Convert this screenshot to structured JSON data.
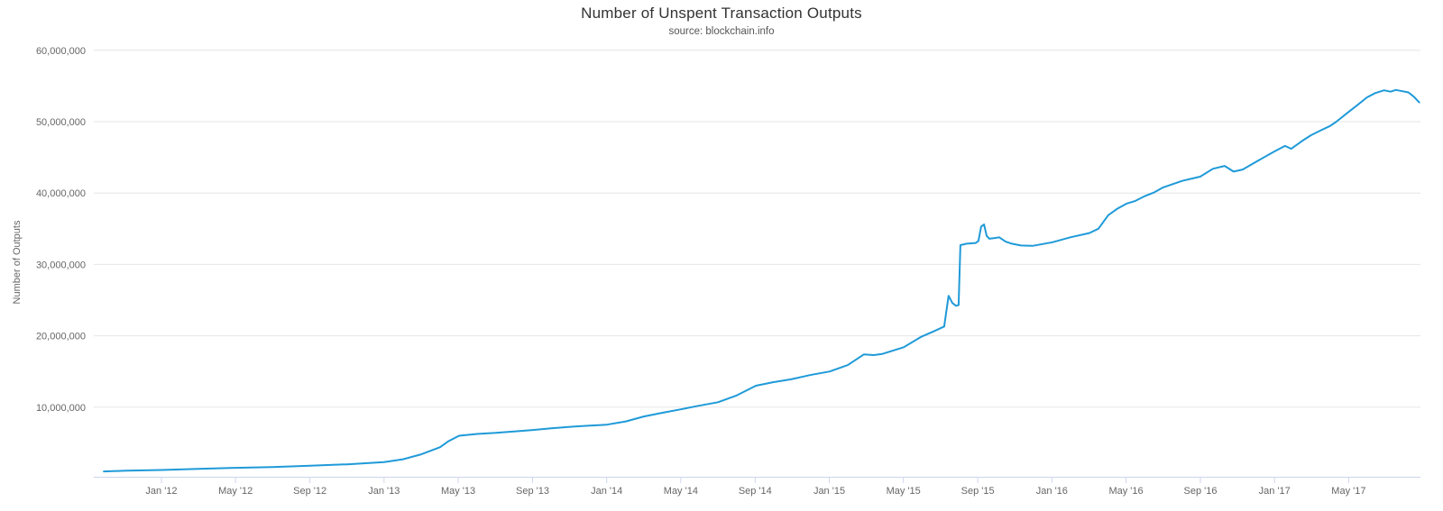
{
  "chart_data": {
    "type": "line",
    "title": "Number of Unspent Transaction Outputs",
    "subtitle": "source: blockchain.info",
    "xlabel": "",
    "ylabel": "Number of Outputs",
    "legend": "none",
    "grid": "horizontal",
    "background": "#ffffff",
    "line_color": "#1f9ad8",
    "grid_color": "#e6e6e6",
    "axis_color": "#ccd6eb",
    "label_color": "#666666",
    "xlim": [
      2011.72,
      2017.67
    ],
    "ylim": [
      0,
      60000000
    ],
    "y_ticks": [
      {
        "value": 10000000,
        "label": "10,000,000"
      },
      {
        "value": 20000000,
        "label": "20,000,000"
      },
      {
        "value": 30000000,
        "label": "30,000,000"
      },
      {
        "value": 40000000,
        "label": "40,000,000"
      },
      {
        "value": 50000000,
        "label": "50,000,000"
      },
      {
        "value": 60000000,
        "label": "60,000,000"
      }
    ],
    "x_ticks": [
      {
        "value": 2012.0,
        "label": "Jan '12"
      },
      {
        "value": 2012.333,
        "label": "May '12"
      },
      {
        "value": 2012.667,
        "label": "Sep '12"
      },
      {
        "value": 2013.0,
        "label": "Jan '13"
      },
      {
        "value": 2013.333,
        "label": "May '13"
      },
      {
        "value": 2013.667,
        "label": "Sep '13"
      },
      {
        "value": 2014.0,
        "label": "Jan '14"
      },
      {
        "value": 2014.333,
        "label": "May '14"
      },
      {
        "value": 2014.667,
        "label": "Sep '14"
      },
      {
        "value": 2015.0,
        "label": "Jan '15"
      },
      {
        "value": 2015.333,
        "label": "May '15"
      },
      {
        "value": 2015.667,
        "label": "Sep '15"
      },
      {
        "value": 2016.0,
        "label": "Jan '16"
      },
      {
        "value": 2016.333,
        "label": "May '16"
      },
      {
        "value": 2016.667,
        "label": "Sep '16"
      },
      {
        "value": 2017.0,
        "label": "Jan '17"
      },
      {
        "value": 2017.333,
        "label": "May '17"
      }
    ],
    "series": [
      {
        "name": "Number of Unspent Transaction Outputs",
        "color": "#1f9ad8",
        "x_unit": "decimal_year",
        "points": [
          [
            2011.741,
            1000000
          ],
          [
            2011.842,
            1100000
          ],
          [
            2011.923,
            1150000
          ],
          [
            2012.0,
            1200000
          ],
          [
            2012.166,
            1350000
          ],
          [
            2012.332,
            1500000
          ],
          [
            2012.498,
            1600000
          ],
          [
            2012.668,
            1800000
          ],
          [
            2012.834,
            2000000
          ],
          [
            2013.0,
            2300000
          ],
          [
            2013.085,
            2700000
          ],
          [
            2013.167,
            3400000
          ],
          [
            2013.252,
            4400000
          ],
          [
            2013.288,
            5200000
          ],
          [
            2013.337,
            6000000
          ],
          [
            2013.418,
            6250000
          ],
          [
            2013.503,
            6400000
          ],
          [
            2013.584,
            6600000
          ],
          [
            2013.669,
            6800000
          ],
          [
            2013.75,
            7050000
          ],
          [
            2013.835,
            7250000
          ],
          [
            2013.916,
            7400000
          ],
          [
            2014.001,
            7550000
          ],
          [
            2014.086,
            8000000
          ],
          [
            2014.167,
            8700000
          ],
          [
            2014.248,
            9200000
          ],
          [
            2014.333,
            9700000
          ],
          [
            2014.414,
            10200000
          ],
          [
            2014.5,
            10700000
          ],
          [
            2014.581,
            11600000
          ],
          [
            2014.67,
            13000000
          ],
          [
            2014.747,
            13500000
          ],
          [
            2014.828,
            13900000
          ],
          [
            2014.913,
            14500000
          ],
          [
            2015.002,
            15000000
          ],
          [
            2015.083,
            15900000
          ],
          [
            2015.156,
            17400000
          ],
          [
            2015.2,
            17300000
          ],
          [
            2015.237,
            17450000
          ],
          [
            2015.334,
            18400000
          ],
          [
            2015.415,
            19900000
          ],
          [
            2015.468,
            20600000
          ],
          [
            2015.516,
            21300000
          ],
          [
            2015.536,
            25600000
          ],
          [
            2015.553,
            24600000
          ],
          [
            2015.569,
            24200000
          ],
          [
            2015.581,
            24300000
          ],
          [
            2015.589,
            32700000
          ],
          [
            2015.617,
            32900000
          ],
          [
            2015.658,
            33000000
          ],
          [
            2015.67,
            33300000
          ],
          [
            2015.682,
            35300000
          ],
          [
            2015.695,
            35600000
          ],
          [
            2015.707,
            34000000
          ],
          [
            2015.719,
            33600000
          ],
          [
            2015.743,
            33700000
          ],
          [
            2015.763,
            33800000
          ],
          [
            2015.792,
            33200000
          ],
          [
            2015.82,
            32900000
          ],
          [
            2015.861,
            32650000
          ],
          [
            2015.913,
            32600000
          ],
          [
            2016.002,
            33100000
          ],
          [
            2016.083,
            33800000
          ],
          [
            2016.168,
            34400000
          ],
          [
            2016.209,
            35000000
          ],
          [
            2016.253,
            36900000
          ],
          [
            2016.294,
            37800000
          ],
          [
            2016.334,
            38500000
          ],
          [
            2016.375,
            38900000
          ],
          [
            2016.419,
            39600000
          ],
          [
            2016.46,
            40100000
          ],
          [
            2016.5,
            40800000
          ],
          [
            2016.585,
            41700000
          ],
          [
            2016.666,
            42300000
          ],
          [
            2016.723,
            43400000
          ],
          [
            2016.776,
            43800000
          ],
          [
            2016.816,
            43000000
          ],
          [
            2016.857,
            43300000
          ],
          [
            2016.913,
            44300000
          ],
          [
            2016.998,
            45800000
          ],
          [
            2017.047,
            46600000
          ],
          [
            2017.075,
            46200000
          ],
          [
            2017.124,
            47300000
          ],
          [
            2017.164,
            48100000
          ],
          [
            2017.209,
            48800000
          ],
          [
            2017.249,
            49400000
          ],
          [
            2017.278,
            50000000
          ],
          [
            2017.33,
            51300000
          ],
          [
            2017.371,
            52300000
          ],
          [
            2017.415,
            53400000
          ],
          [
            2017.452,
            54000000
          ],
          [
            2017.492,
            54400000
          ],
          [
            2017.521,
            54200000
          ],
          [
            2017.545,
            54450000
          ],
          [
            2017.577,
            54250000
          ],
          [
            2017.601,
            54100000
          ],
          [
            2017.626,
            53500000
          ],
          [
            2017.65,
            52700000
          ]
        ]
      }
    ]
  }
}
